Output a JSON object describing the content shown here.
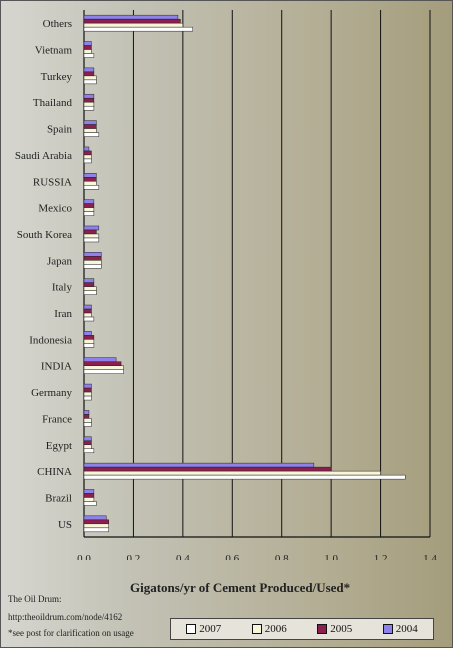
{
  "chart_data": {
    "type": "bar",
    "orientation": "horizontal",
    "categories": [
      "US",
      "Brazil",
      "CHINA",
      "Egypt",
      "France",
      "Germany",
      "INDIA",
      "Indonesia",
      "Iran",
      "Italy",
      "Japan",
      "South Korea",
      "Mexico",
      "RUSSIA",
      "Saudi Arabia",
      "Spain",
      "Thailand",
      "Turkey",
      "Vietnam",
      "Others"
    ],
    "series": [
      {
        "name": "2007",
        "color": "#ffffff",
        "values": [
          0.1,
          0.05,
          1.3,
          0.04,
          0.03,
          0.03,
          0.16,
          0.04,
          0.04,
          0.05,
          0.07,
          0.06,
          0.04,
          0.06,
          0.03,
          0.06,
          0.04,
          0.05,
          0.04,
          0.44
        ]
      },
      {
        "name": "2006",
        "color": "#f7f6d9",
        "values": [
          0.1,
          0.04,
          1.2,
          0.03,
          0.03,
          0.03,
          0.16,
          0.04,
          0.03,
          0.05,
          0.07,
          0.06,
          0.04,
          0.05,
          0.03,
          0.05,
          0.04,
          0.05,
          0.03,
          0.4
        ]
      },
      {
        "name": "2005",
        "color": "#8b1f4e",
        "values": [
          0.1,
          0.04,
          1.0,
          0.03,
          0.02,
          0.03,
          0.15,
          0.04,
          0.03,
          0.04,
          0.07,
          0.05,
          0.04,
          0.05,
          0.03,
          0.05,
          0.04,
          0.04,
          0.03,
          0.39
        ]
      },
      {
        "name": "2004",
        "color": "#8e82ea",
        "values": [
          0.09,
          0.04,
          0.93,
          0.03,
          0.02,
          0.03,
          0.13,
          0.03,
          0.03,
          0.04,
          0.07,
          0.06,
          0.04,
          0.05,
          0.02,
          0.05,
          0.04,
          0.04,
          0.03,
          0.38
        ]
      }
    ],
    "xlabel": "Gigatons/yr of Cement Produced/Used*",
    "xlim": [
      0,
      1.4
    ],
    "xticks": [
      "0.0",
      "0.2",
      "0.4",
      "0.6",
      "0.8",
      "1.0",
      "1.2",
      "1.4"
    ],
    "grid": true,
    "legend_position": "bottom-right"
  },
  "notes": {
    "source": "The Oil Drum:",
    "url": "http:theoildrum.com/node/4162",
    "footnote": "*see post for clarification on usage"
  }
}
